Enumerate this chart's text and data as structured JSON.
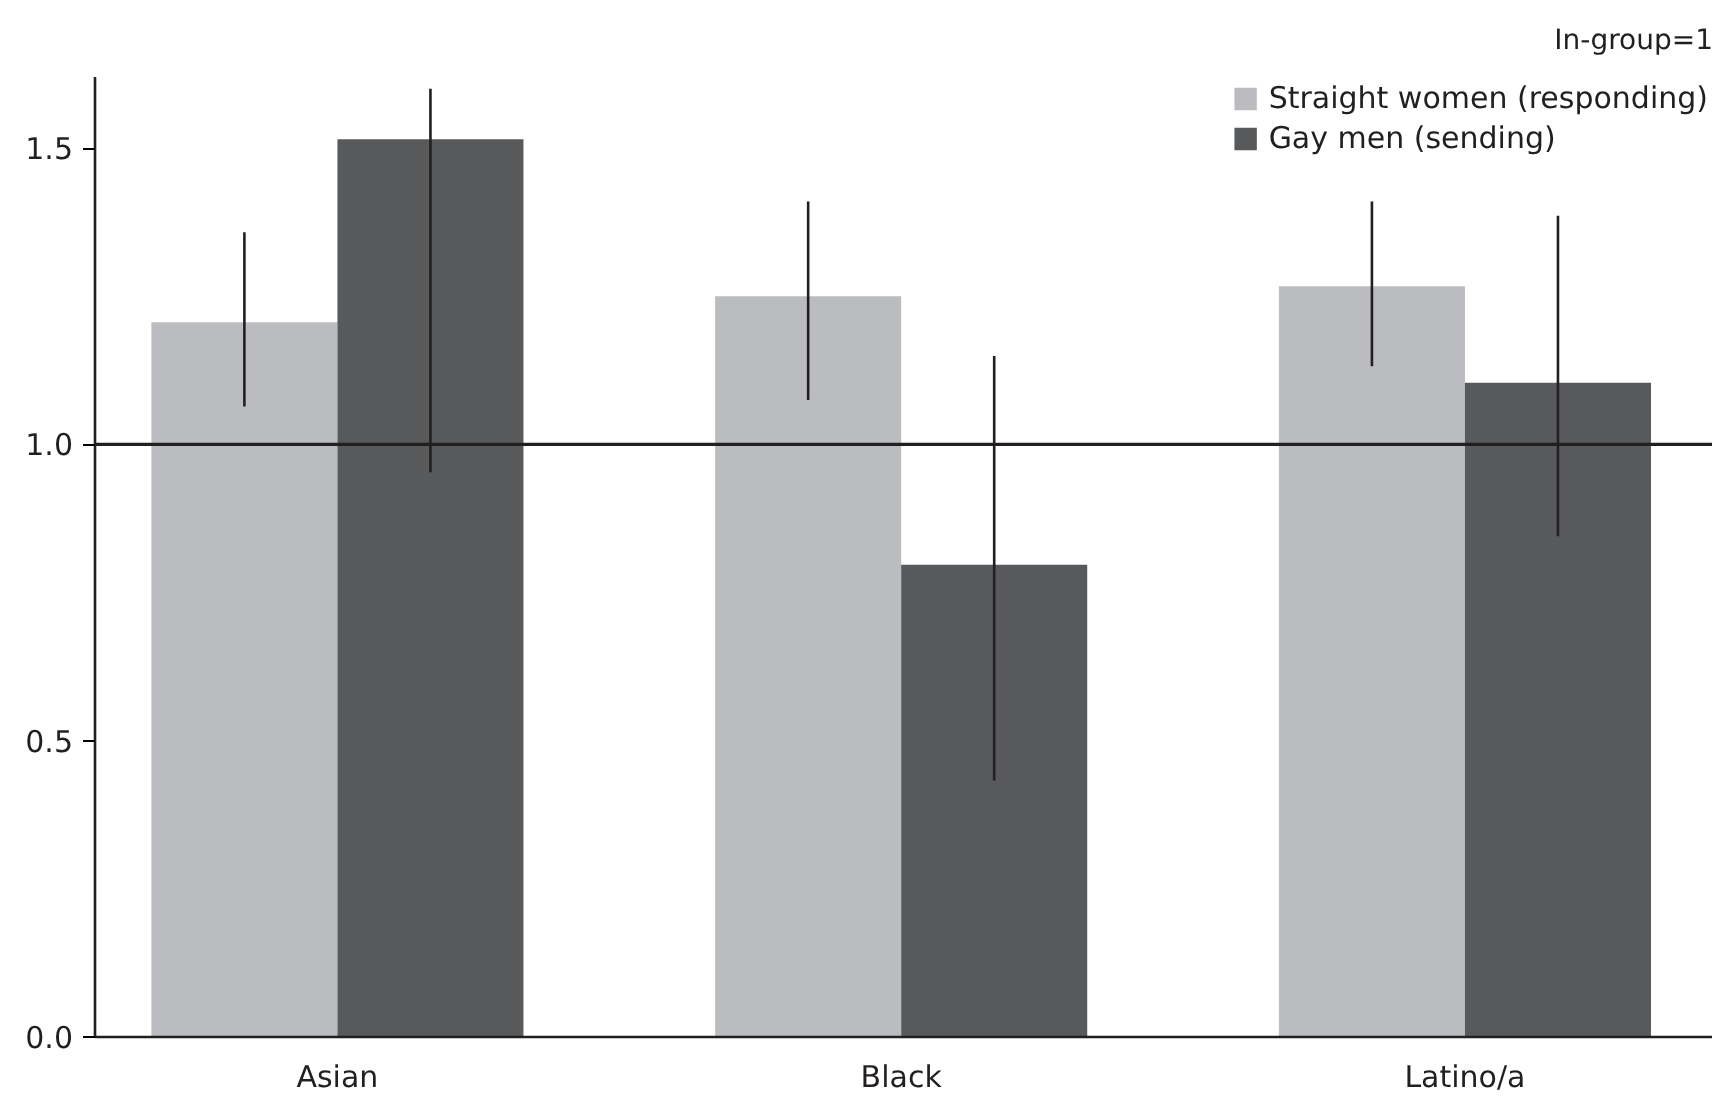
{
  "chart_data": {
    "type": "bar",
    "categories": [
      "Asian",
      "Black",
      "Latino/a"
    ],
    "legend_title": "In-group=1",
    "series": [
      {
        "name": "Straight women (responding)",
        "color": "#bbbcbf",
        "values": [
          1.206,
          1.25,
          1.267
        ],
        "errors": [
          [
            1.064,
            1.358
          ],
          [
            1.075,
            1.41
          ],
          [
            1.132,
            1.41
          ]
        ]
      },
      {
        "name": "Gay men (sending)",
        "color": "#58595b",
        "values": [
          1.515,
          0.797,
          1.104
        ],
        "errors": [
          [
            0.953,
            1.6
          ],
          [
            0.433,
            1.149
          ],
          [
            0.845,
            1.386
          ]
        ]
      }
    ],
    "ylim": [
      0,
      1.62
    ],
    "yticks": [
      {
        "value": 0,
        "label": "0.0"
      },
      {
        "value": 0.5,
        "label": "0.5"
      },
      {
        "value": 1,
        "label": "1.0"
      },
      {
        "value": 1.5,
        "label": "1.5"
      }
    ],
    "ref_lines": [
      {
        "axis": "y",
        "value": 1,
        "label": null,
        "color": "#231f20"
      }
    ],
    "grid": false,
    "legend": "top right"
  }
}
